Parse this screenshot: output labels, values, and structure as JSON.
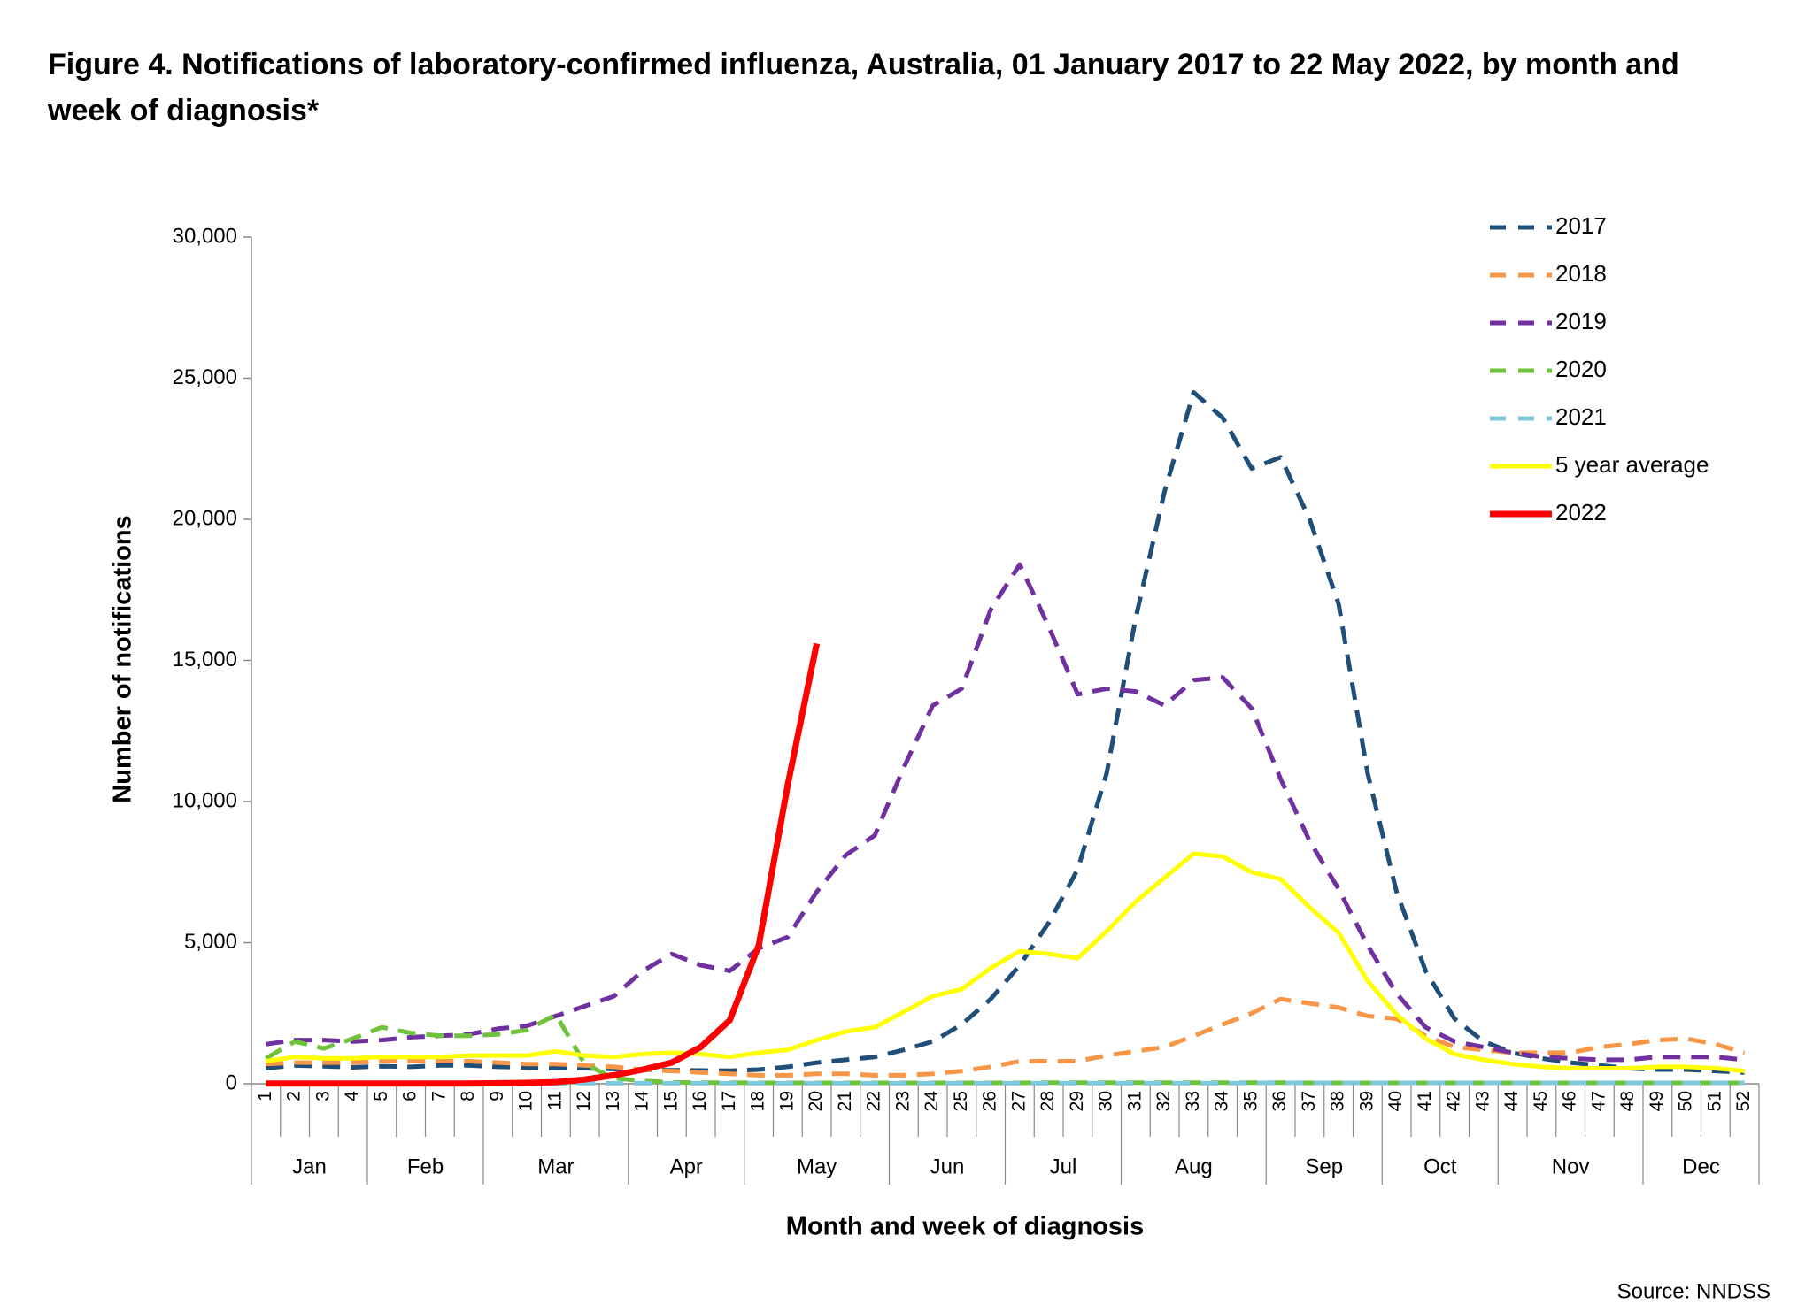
{
  "chart_data": {
    "type": "line",
    "title": "Figure 4. Notifications of laboratory-confirmed influenza, Australia, 01 January 2017 to 22 May 2022, by month and week of diagnosis*",
    "x_label": "Month and week of diagnosis",
    "y_label": "Number of notifications",
    "source": "Source: NNDSS",
    "categories": [
      "1",
      "2",
      "3",
      "4",
      "5",
      "6",
      "7",
      "8",
      "9",
      "10",
      "11",
      "12",
      "13",
      "14",
      "15",
      "16",
      "17",
      "18",
      "19",
      "20",
      "21",
      "22",
      "23",
      "24",
      "25",
      "26",
      "27",
      "28",
      "29",
      "30",
      "31",
      "32",
      "33",
      "34",
      "35",
      "36",
      "37",
      "38",
      "39",
      "40",
      "41",
      "42",
      "43",
      "44",
      "45",
      "46",
      "47",
      "48",
      "49",
      "50",
      "51",
      "52"
    ],
    "months": [
      "Jan",
      "Feb",
      "Mar",
      "Apr",
      "May",
      "Jun",
      "Jul",
      "Aug",
      "Sep",
      "Oct",
      "Nov",
      "Dec"
    ],
    "ylim": [
      0,
      30000
    ],
    "yticks": [
      {
        "value": 0,
        "label": "0"
      },
      {
        "value": 5000,
        "label": "5,000"
      },
      {
        "value": 10000,
        "label": "10,000"
      },
      {
        "value": 15000,
        "label": "15,000"
      },
      {
        "value": 20000,
        "label": "20,000"
      },
      {
        "value": 25000,
        "label": "25,000"
      },
      {
        "value": 30000,
        "label": "30,000"
      }
    ],
    "legend": "top-right",
    "series": [
      {
        "name": "2017",
        "color": "#1f4e79",
        "style": "dashed",
        "values": [
          550,
          650,
          620,
          580,
          620,
          600,
          650,
          650,
          600,
          580,
          550,
          550,
          520,
          500,
          480,
          470,
          460,
          500,
          600,
          750,
          850,
          950,
          1200,
          1500,
          2100,
          3000,
          4200,
          5700,
          7600,
          11000,
          16500,
          21000,
          24500,
          23600,
          21800,
          22200,
          20000,
          17000,
          11000,
          6800,
          4000,
          2300,
          1500,
          1100,
          900,
          750,
          650,
          550,
          500,
          500,
          450,
          400
        ]
      },
      {
        "name": "2018",
        "color": "#f79646",
        "style": "dashed",
        "values": [
          700,
          750,
          750,
          750,
          800,
          800,
          800,
          800,
          750,
          700,
          700,
          650,
          600,
          500,
          450,
          400,
          350,
          300,
          300,
          350,
          350,
          300,
          300,
          350,
          450,
          600,
          800,
          800,
          800,
          1000,
          1150,
          1300,
          1700,
          2100,
          2500,
          3000,
          2850,
          2700,
          2400,
          2300,
          1700,
          1300,
          1200,
          1100,
          1100,
          1100,
          1300,
          1400,
          1550,
          1600,
          1400,
          1100
        ]
      },
      {
        "name": "2019",
        "color": "#7030a0",
        "style": "dashed",
        "values": [
          1400,
          1550,
          1550,
          1500,
          1550,
          1650,
          1700,
          1750,
          1950,
          2050,
          2400,
          2750,
          3100,
          4000,
          4600,
          4200,
          4000,
          4800,
          5200,
          6800,
          8100,
          8800,
          11200,
          13400,
          14000,
          16800,
          18400,
          16200,
          13800,
          14000,
          13900,
          13400,
          14300,
          14400,
          13300,
          10800,
          8600,
          6900,
          4900,
          3200,
          2000,
          1500,
          1300,
          1100,
          950,
          900,
          850,
          850,
          950,
          950,
          950,
          850
        ]
      },
      {
        "name": "2020",
        "color": "#70c23b",
        "style": "dashed",
        "values": [
          900,
          1500,
          1250,
          1600,
          2000,
          1800,
          1700,
          1700,
          1750,
          1900,
          2450,
          700,
          200,
          100,
          50,
          40,
          40,
          30,
          30,
          30,
          30,
          30,
          30,
          30,
          30,
          30,
          30,
          40,
          40,
          40,
          40,
          40,
          40,
          40,
          40,
          40,
          30,
          30,
          30,
          30,
          30,
          30,
          30,
          30,
          30,
          30,
          30,
          30,
          30,
          30,
          30,
          30
        ]
      },
      {
        "name": "2021",
        "color": "#7fc9e0",
        "style": "dashed",
        "values": [
          20,
          20,
          20,
          20,
          20,
          20,
          20,
          20,
          20,
          20,
          20,
          20,
          20,
          20,
          20,
          20,
          20,
          20,
          20,
          20,
          20,
          20,
          20,
          20,
          20,
          20,
          20,
          20,
          20,
          20,
          20,
          20,
          20,
          20,
          30,
          30,
          30,
          30,
          30,
          30,
          30,
          30,
          30,
          30,
          30,
          30,
          30,
          30,
          30,
          30,
          30,
          30
        ]
      },
      {
        "name": "5 year average",
        "color": "#ffff00",
        "style": "solid",
        "values": [
          800,
          950,
          900,
          900,
          950,
          950,
          950,
          1000,
          1000,
          1000,
          1150,
          1000,
          950,
          1050,
          1100,
          1050,
          950,
          1100,
          1200,
          1550,
          1850,
          2000,
          2550,
          3100,
          3350,
          4100,
          4700,
          4600,
          4450,
          5400,
          6450,
          7300,
          8150,
          8050,
          7500,
          7250,
          6250,
          5350,
          3650,
          2450,
          1600,
          1050,
          850,
          700,
          600,
          550,
          550,
          550,
          600,
          600,
          550,
          450
        ]
      },
      {
        "name": "2022",
        "color": "#ff0000",
        "style": "bold",
        "values": [
          10,
          10,
          10,
          10,
          10,
          10,
          10,
          10,
          20,
          30,
          60,
          150,
          300,
          500,
          750,
          1300,
          2250,
          4900,
          10600,
          15600,
          null,
          null,
          null,
          null,
          null,
          null,
          null,
          null,
          null,
          null,
          null,
          null,
          null,
          null,
          null,
          null,
          null,
          null,
          null,
          null,
          null,
          null,
          null,
          null,
          null,
          null,
          null,
          null,
          null,
          null,
          null,
          null
        ]
      }
    ]
  }
}
